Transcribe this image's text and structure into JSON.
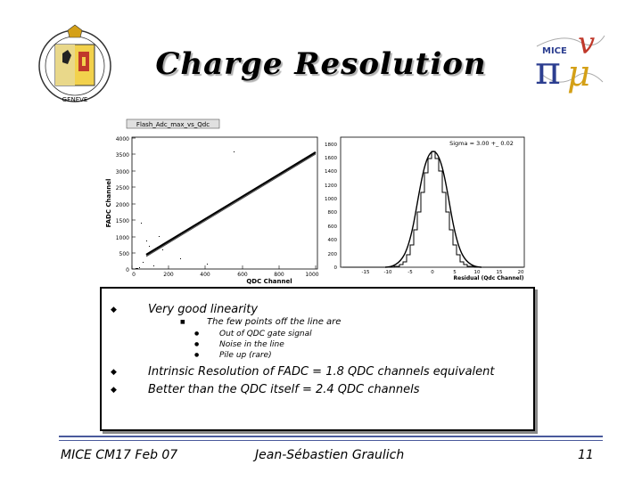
{
  "title": "Charge Resolution",
  "left_plot": {
    "title": "Flash_Adc_max_vs_Qdc",
    "xlabel": "QDC Channel",
    "ylabel": "FADC Channel",
    "xticks": [
      "0",
      "200",
      "400",
      "600",
      "800",
      "1000"
    ],
    "yticks": [
      "0",
      "500",
      "1000",
      "1500",
      "2000",
      "2500",
      "3000",
      "3500",
      "4000"
    ]
  },
  "right_plot": {
    "annotation": "Sigma = 3.00 +_ 0.02",
    "xlabel": "Residual (Qdc Channel)",
    "xticks": [
      "-15",
      "-10",
      "-5",
      "0",
      "5",
      "10",
      "15",
      "20"
    ],
    "yticks": [
      "0",
      "200",
      "400",
      "600",
      "800",
      "1000",
      "1200",
      "1400",
      "1600",
      "1800"
    ]
  },
  "bullets": {
    "b1": "Very good linearity",
    "b1_sub": "The few points off the line are",
    "b1_subsub": [
      "Out of QDC gate signal",
      "Noise in the line",
      "Pile up (rare)"
    ],
    "b2": "Intrinsic Resolution of FADC = 1.8 QDC channels equivalent",
    "b3": "Better than the QDC itself  = 2.4 QDC channels"
  },
  "footer": {
    "left": "MICE CM17 Feb 07",
    "center": "Jean-Sébastien Graulich",
    "page": "11"
  },
  "colors": {
    "footer_line": "#4a5a9c",
    "logo_red": "#c0392b",
    "logo_gold": "#d4a017"
  }
}
